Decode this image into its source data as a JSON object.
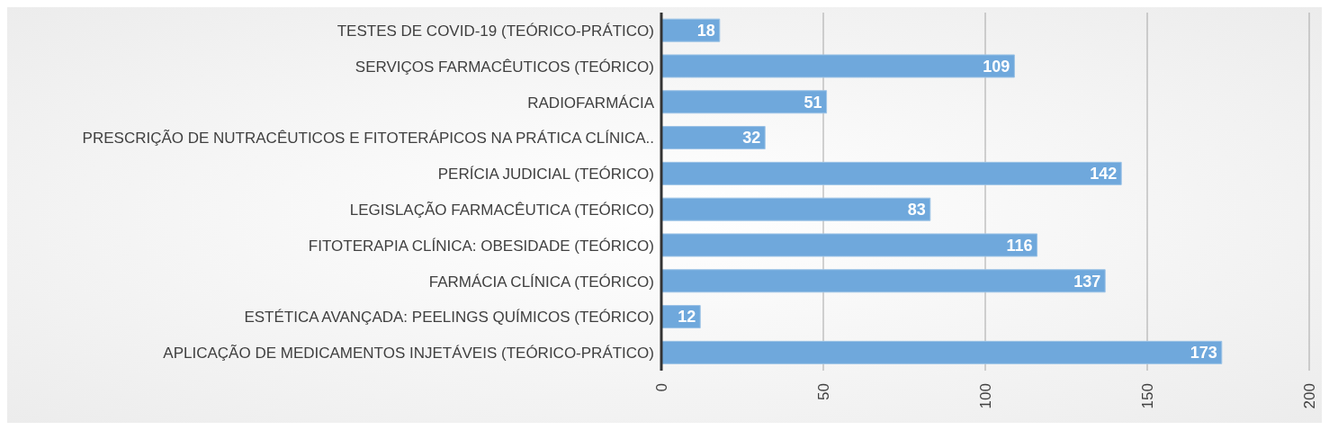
{
  "chart_data": {
    "type": "bar",
    "orientation": "horizontal",
    "categories": [
      "TESTES DE COVID-19 (TEÓRICO-PRÁTICO)",
      "SERVIÇOS FARMACÊUTICOS (TEÓRICO)",
      "RADIOFARMÁCIA",
      "PRESCRIÇÃO DE NUTRACÊUTICOS E FITOTERÁPICOS NA PRÁTICA CLÍNICA..",
      "PERÍCIA JUDICIAL (TEÓRICO)",
      "LEGISLAÇÃO FARMACÊUTICA (TEÓRICO)",
      "FITOTERAPIA CLÍNICA: OBESIDADE (TEÓRICO)",
      "FARMÁCIA CLÍNICA (TEÓRICO)",
      "ESTÉTICA AVANÇADA: PEELINGS QUÍMICOS (TEÓRICO)",
      "APLICAÇÃO DE MEDICAMENTOS INJETÁVEIS (TEÓRICO-PRÁTICO)"
    ],
    "values": [
      18,
      109,
      51,
      32,
      142,
      83,
      116,
      137,
      12,
      173
    ],
    "color": "#6fa8dc",
    "xlim": [
      0,
      200
    ],
    "xticks": [
      0,
      50,
      100,
      150,
      200
    ],
    "grid": "x",
    "data_labels": true,
    "legend": false
  }
}
